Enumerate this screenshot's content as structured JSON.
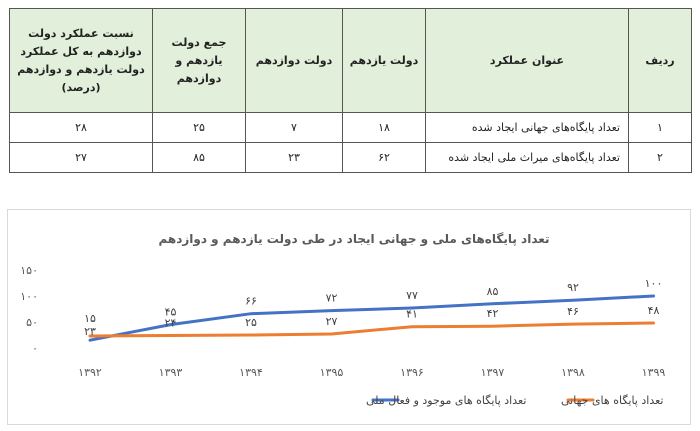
{
  "table": {
    "headers": {
      "row_no": "ردیف",
      "title": "عنوان عملکرد",
      "gov11": "دولت یازدهم",
      "gov12": "دولت دوازدهم",
      "sum": [
        "جمع دولت",
        "یازدهم و دوازدهم"
      ],
      "ratio": [
        "نسبت عملکرد دولت",
        "دوازدهم به کل عملکرد",
        "دولت یازدهم و دوازدهم",
        "(درصد)"
      ]
    },
    "rows": [
      {
        "no": "۱",
        "title": "تعداد پایگاه‌های جهانی ایجاد شده",
        "gov11": "۱۸",
        "gov12": "۷",
        "sum": "۲۵",
        "ratio": "۲۸"
      },
      {
        "no": "۲",
        "title": "تعداد پایگاه‌های میراث ملی ایجاد شده",
        "gov11": "۶۲",
        "gov12": "۲۳",
        "sum": "۸۵",
        "ratio": "۲۷"
      }
    ]
  },
  "chart_data": {
    "type": "line",
    "title": "تعداد پایگاه‌های ملی و جهانی ایجاد در طی دولت یازدهم و دوازدهم",
    "x": [
      "۱۳۹۲",
      "۱۳۹۳",
      "۱۳۹۴",
      "۱۳۹۵",
      "۱۳۹۶",
      "۱۳۹۷",
      "۱۳۹۸",
      "۱۳۹۹"
    ],
    "ylim": [
      0,
      150
    ],
    "yticks": [
      0,
      50,
      100,
      150
    ],
    "ytick_labels": [
      "۰",
      "۵۰",
      "۱۰۰",
      "۱۵۰"
    ],
    "grid": false,
    "legend_position": "bottom",
    "series": [
      {
        "name": "تعداد پایگاه های موجود و فعال ملی",
        "color": "#4472c4",
        "values": [
          15,
          45,
          66,
          72,
          77,
          85,
          92,
          100
        ],
        "labels": [
          "۱۵",
          "۴۵",
          "۶۶",
          "۷۲",
          "۷۷",
          "۸۵",
          "۹۲",
          "۱۰۰"
        ]
      },
      {
        "name": "تعداد پایگاه های جهانی",
        "color": "#ed7d31",
        "values": [
          23,
          24,
          25,
          27,
          41,
          42,
          46,
          48
        ],
        "labels": [
          "۲۳",
          "۲۴",
          "۲۵",
          "۲۷",
          "۴۱",
          "۴۲",
          "۴۶",
          "۴۸"
        ]
      }
    ]
  }
}
